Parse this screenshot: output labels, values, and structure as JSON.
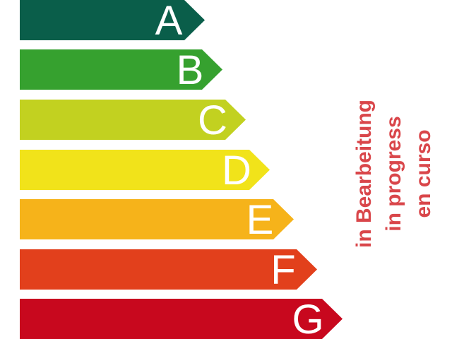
{
  "energy_classes": [
    {
      "letter": "A",
      "color": "#0a5e4a"
    },
    {
      "letter": "B",
      "color": "#36a12f"
    },
    {
      "letter": "C",
      "color": "#c2d120"
    },
    {
      "letter": "D",
      "color": "#f1e31a"
    },
    {
      "letter": "E",
      "color": "#f6b31a"
    },
    {
      "letter": "F",
      "color": "#e2401c"
    },
    {
      "letter": "G",
      "color": "#c8081e"
    }
  ],
  "letter_color": "#ffffff",
  "status": {
    "color": "#d9464a",
    "lines": [
      "in Bearbeitung",
      "in progress",
      "en curso"
    ]
  }
}
